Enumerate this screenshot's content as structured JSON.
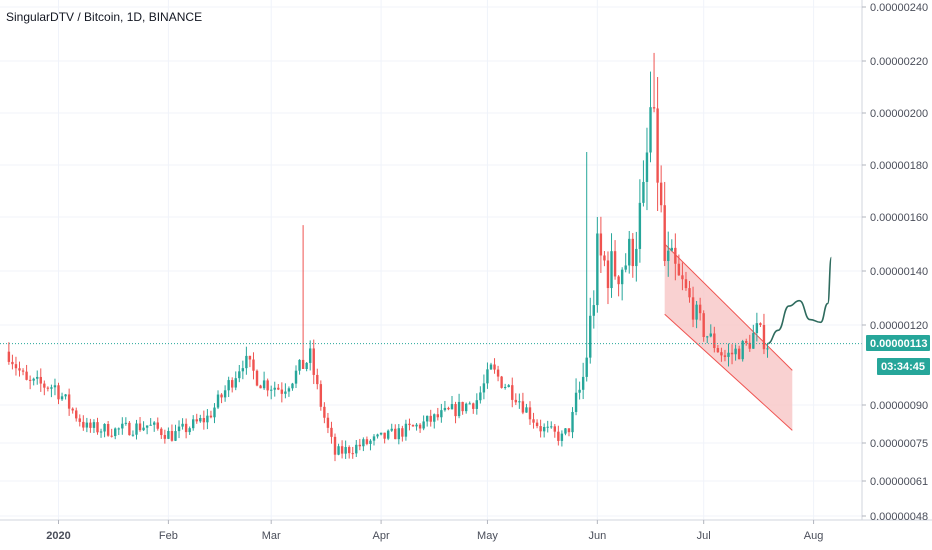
{
  "chart_data": {
    "type": "candlestick",
    "title": "SingularDTV / Bitcoin, 1D, BINANCE",
    "x_tick_labels": [
      "2020",
      "Feb",
      "Mar",
      "Apr",
      "May",
      "Jun",
      "Jul",
      "Aug"
    ],
    "y_tick_labels": [
      "0.00000240",
      "0.00000220",
      "0.00000200",
      "0.00000180",
      "0.00000160",
      "0.00000140",
      "0.00000120",
      "0.00000090",
      "0.00000075",
      "0.00000061",
      "0.00000048"
    ],
    "y_scale": "log",
    "ylim": [
      4.8e-07,
      2.4e-06
    ],
    "grid": true,
    "current_price": {
      "label": "0.00000113",
      "value": 1.13e-06
    },
    "countdown": {
      "label": "03:34:45"
    },
    "colors": {
      "up": "#26a69a",
      "down": "#ef5350",
      "channel_fill": "#f7c6c6",
      "channel_line": "#ef5350",
      "projection": "#2e6b5e",
      "price_line": "#26a69a"
    },
    "anchors": [
      {
        "date": "2019-12-18",
        "price": 1.1e-06
      },
      {
        "date": "2019-12-23",
        "price": 9.8e-07
      },
      {
        "date": "2019-12-31",
        "price": 9.7e-07
      },
      {
        "date": "2020-01-09",
        "price": 8.1e-07
      },
      {
        "date": "2020-01-17",
        "price": 8e-07
      },
      {
        "date": "2020-01-26",
        "price": 8.2e-07
      },
      {
        "date": "2020-02-02",
        "price": 7.8e-07
      },
      {
        "date": "2020-02-12",
        "price": 8.5e-07
      },
      {
        "date": "2020-02-22",
        "price": 1.07e-06
      },
      {
        "date": "2020-02-27",
        "price": 9.9e-07
      },
      {
        "date": "2020-03-04",
        "price": 9.6e-07
      },
      {
        "date": "2020-03-12",
        "price": 1.08e-06
      },
      {
        "date": "2020-03-16",
        "price": 8.5e-07
      },
      {
        "date": "2020-03-19",
        "price": 7.1e-07
      },
      {
        "date": "2020-03-28",
        "price": 7.5e-07
      },
      {
        "date": "2020-04-10",
        "price": 8.1e-07
      },
      {
        "date": "2020-04-20",
        "price": 8.7e-07
      },
      {
        "date": "2020-04-28",
        "price": 9.2e-07
      },
      {
        "date": "2020-05-02",
        "price": 1.03e-06
      },
      {
        "date": "2020-05-09",
        "price": 9.4e-07
      },
      {
        "date": "2020-05-16",
        "price": 8.1e-07
      },
      {
        "date": "2020-05-22",
        "price": 7.7e-07
      },
      {
        "date": "2020-05-24",
        "price": 8.1e-07
      },
      {
        "date": "2020-05-28",
        "price": 1e-06
      },
      {
        "date": "2020-05-30",
        "price": 1.2e-06
      },
      {
        "date": "2020-06-01",
        "price": 1.45e-06
      },
      {
        "date": "2020-06-05",
        "price": 1.4e-06
      },
      {
        "date": "2020-06-10",
        "price": 1.45e-06
      },
      {
        "date": "2020-06-14",
        "price": 1.65e-06
      },
      {
        "date": "2020-06-16",
        "price": 2e-06
      },
      {
        "date": "2020-06-18",
        "price": 1.78e-06
      },
      {
        "date": "2020-06-20",
        "price": 1.43e-06
      },
      {
        "date": "2020-06-25",
        "price": 1.35e-06
      },
      {
        "date": "2020-07-01",
        "price": 1.18e-06
      },
      {
        "date": "2020-07-07",
        "price": 1.08e-06
      },
      {
        "date": "2020-07-13",
        "price": 1.12e-06
      },
      {
        "date": "2020-07-16",
        "price": 1.18e-06
      },
      {
        "date": "2020-07-19",
        "price": 1.13e-06
      }
    ],
    "spikes": [
      {
        "date": "2020-03-10",
        "high": 1.57e-06
      },
      {
        "date": "2020-05-29",
        "high": 1.85e-06
      },
      {
        "date": "2020-06-17",
        "high": 2.23e-06
      }
    ],
    "channel": [
      {
        "date": "2020-06-20",
        "price": 1.5e-06
      },
      {
        "date": "2020-07-26",
        "price": 1.03e-06
      },
      {
        "date": "2020-07-26",
        "price": 8e-07
      },
      {
        "date": "2020-06-20",
        "price": 1.24e-06
      }
    ],
    "projection": [
      {
        "date": "2020-07-19",
        "price": 1.13e-06
      },
      {
        "date": "2020-07-22",
        "price": 1.18e-06
      },
      {
        "date": "2020-07-25",
        "price": 1.27e-06
      },
      {
        "date": "2020-07-28",
        "price": 1.29e-06
      },
      {
        "date": "2020-07-31",
        "price": 1.22e-06
      },
      {
        "date": "2020-08-03",
        "price": 1.21e-06
      },
      {
        "date": "2020-08-05",
        "price": 1.28e-06
      },
      {
        "date": "2020-08-06",
        "price": 1.45e-06
      }
    ]
  }
}
